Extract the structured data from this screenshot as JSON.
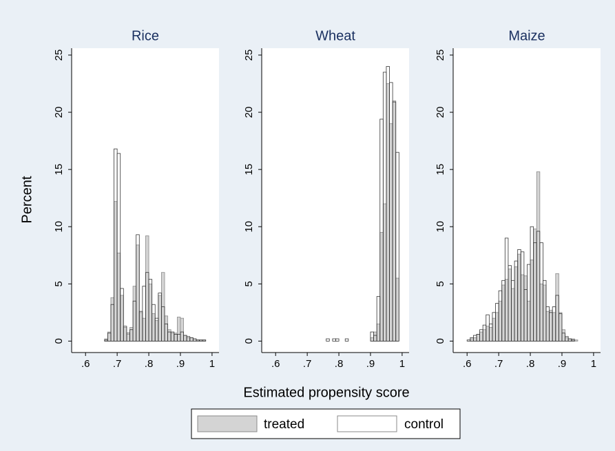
{
  "x_label": "Estimated propensity score",
  "y_label": "Percent",
  "chart_data": [
    {
      "type": "histogram",
      "title": "Rice",
      "bins": [
        0.66,
        0.67,
        0.68,
        0.69,
        0.7,
        0.71,
        0.72,
        0.73,
        0.74,
        0.75,
        0.76,
        0.77,
        0.78,
        0.79,
        0.8,
        0.81,
        0.82,
        0.83,
        0.84,
        0.85,
        0.86,
        0.87,
        0.88,
        0.89,
        0.9,
        0.91,
        0.92,
        0.93,
        0.94,
        0.95,
        0.96,
        0.97,
        0.98,
        0.99
      ],
      "series": [
        {
          "name": "treated",
          "color": "#d4d4d4",
          "values": [
            0.2,
            0.8,
            3.8,
            12.2,
            7.7,
            4.0,
            1.2,
            0.6,
            1.2,
            4.8,
            8.4,
            2.5,
            2.0,
            9.2,
            5.0,
            2.4,
            1.8,
            4.0,
            6.0,
            2.2,
            1.0,
            0.7,
            0.7,
            2.1,
            2.0,
            0.5,
            0.3,
            0.3,
            0.2,
            0.1,
            0.1,
            0.1,
            0
          ]
        },
        {
          "name": "control",
          "color": "#ffffff",
          "values": [
            0.1,
            0.7,
            3.2,
            16.8,
            16.4,
            4.6,
            1.3,
            0.7,
            1.0,
            3.5,
            9.3,
            2.6,
            4.8,
            6.0,
            5.4,
            3.2,
            2.0,
            4.2,
            3.0,
            1.5,
            0.8,
            0.8,
            0.6,
            0.6,
            0.8,
            0.5,
            0.4,
            0.3,
            0.2,
            0.1,
            0.1,
            0.1,
            0
          ]
        }
      ],
      "xlim": [
        0.556,
        1.022
      ],
      "ylim": [
        -1,
        25.6
      ],
      "xticks": [
        {
          "value": 0.6,
          "label": ".6"
        },
        {
          "value": 0.7,
          "label": ".7"
        },
        {
          "value": 0.8,
          "label": ".8"
        },
        {
          "value": 0.9,
          "label": ".9"
        },
        1
      ],
      "yticks": [
        0,
        5,
        10,
        15,
        20,
        25
      ]
    },
    {
      "type": "histogram",
      "title": "Wheat",
      "bins": [
        0.76,
        0.77,
        0.78,
        0.79,
        0.8,
        0.81,
        0.82,
        0.83,
        0.84,
        0.85,
        0.86,
        0.87,
        0.88,
        0.89,
        0.9,
        0.91,
        0.92,
        0.93,
        0.94,
        0.95,
        0.96,
        0.97,
        0.98,
        0.99
      ],
      "series": [
        {
          "name": "treated",
          "color": "#d4d4d4",
          "values": [
            0,
            0,
            0,
            0,
            0,
            0,
            0,
            0,
            0,
            0,
            0,
            0,
            0,
            0,
            0.3,
            0.8,
            1.5,
            9.5,
            12,
            22.5,
            19,
            21,
            5.5
          ]
        },
        {
          "name": "control",
          "color": "#ffffff",
          "values": [
            0.2,
            0,
            0.2,
            0.2,
            0,
            0,
            0.2,
            0,
            0,
            0,
            0,
            0,
            0,
            0,
            0.8,
            0.5,
            3.9,
            19.4,
            23.5,
            24,
            22.6,
            20.9,
            16.5
          ]
        }
      ],
      "xlim": [
        0.556,
        1.022
      ],
      "ylim": [
        -1,
        25.6
      ],
      "xticks": [
        {
          "value": 0.6,
          "label": ".6"
        },
        {
          "value": 0.7,
          "label": ".7"
        },
        {
          "value": 0.8,
          "label": ".8"
        },
        {
          "value": 0.9,
          "label": ".9"
        },
        1
      ],
      "yticks": [
        0,
        5,
        10,
        15,
        20,
        25
      ]
    },
    {
      "type": "histogram",
      "title": "Maize",
      "bins": [
        0.6,
        0.61,
        0.62,
        0.63,
        0.64,
        0.65,
        0.66,
        0.67,
        0.68,
        0.69,
        0.7,
        0.71,
        0.72,
        0.73,
        0.74,
        0.75,
        0.76,
        0.77,
        0.78,
        0.79,
        0.8,
        0.81,
        0.82,
        0.83,
        0.84,
        0.85,
        0.86,
        0.87,
        0.88,
        0.89,
        0.9,
        0.91,
        0.92,
        0.93,
        0.94,
        0.95
      ],
      "series": [
        {
          "name": "treated",
          "color": "#d4d4d4",
          "values": [
            0,
            0.2,
            0.3,
            0.6,
            0.8,
            1.0,
            1.3,
            1.2,
            2.0,
            2.5,
            3.5,
            4.9,
            5.4,
            6.3,
            4.6,
            6.5,
            7.6,
            5.8,
            5.7,
            3.5,
            7.1,
            9.8,
            14.8,
            5.0,
            4.9,
            2.6,
            2.7,
            2.5,
            5.9,
            2.5,
            1.0,
            0.3,
            0.2,
            0.2,
            0.1
          ]
        },
        {
          "name": "control",
          "color": "#ffffff",
          "values": [
            0.1,
            0.3,
            0.5,
            0.6,
            1.0,
            1.4,
            2.3,
            1.5,
            2.5,
            3.3,
            4.4,
            5.3,
            9.0,
            6.6,
            5.3,
            7.0,
            8.0,
            7.8,
            4.5,
            6.7,
            10.0,
            8.6,
            9.6,
            8.6,
            5.3,
            3.0,
            2.5,
            3.0,
            4.0,
            2.4,
            0.7,
            0.4,
            0.2,
            0.1,
            0
          ]
        }
      ],
      "xlim": [
        0.556,
        1.022
      ],
      "ylim": [
        -1,
        25.6
      ],
      "xticks": [
        {
          "value": 0.6,
          "label": ".6"
        },
        {
          "value": 0.7,
          "label": ".7"
        },
        {
          "value": 0.8,
          "label": ".8"
        },
        {
          "value": 0.9,
          "label": ".9"
        },
        1
      ],
      "yticks": [
        0,
        5,
        10,
        15,
        20,
        25
      ]
    }
  ]
}
